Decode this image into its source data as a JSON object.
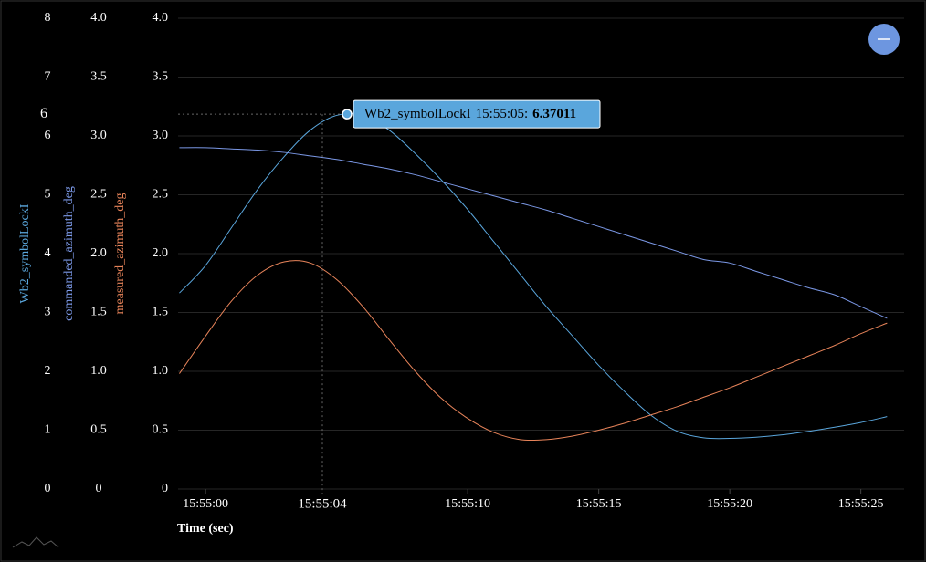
{
  "chart_data": {
    "type": "line",
    "x_label": "Time (sec)",
    "x": [
      -1,
      0,
      1,
      2,
      3,
      4,
      5,
      6,
      7,
      8,
      9,
      10,
      11,
      12,
      13,
      14,
      15,
      16,
      17,
      18,
      19,
      20,
      21,
      22,
      23,
      24,
      25,
      26
    ],
    "xlim": [
      -1.05,
      26.65
    ],
    "xticks": [
      {
        "value": 0,
        "label": "15:55:00"
      },
      {
        "value": 10,
        "label": "15:55:10"
      },
      {
        "value": 15,
        "label": "15:55:15"
      },
      {
        "value": 20,
        "label": "15:55:20"
      },
      {
        "value": 25,
        "label": "15:55:25"
      }
    ],
    "grid": true,
    "axes": [
      {
        "label": "Wb2_symbolLockI",
        "color": "#5aa6dc",
        "lim": [
          0,
          8
        ],
        "ticks": [
          0,
          1,
          2,
          3,
          4,
          5,
          6,
          7,
          8
        ]
      },
      {
        "label": "commanded_azimuth_deg",
        "color": "#7b98e6",
        "lim": [
          0,
          4
        ],
        "ticks": [
          0,
          0.5,
          {
            "value": 1,
            "label": "1.0"
          },
          1.5,
          {
            "value": 2,
            "label": "2.0"
          },
          2.5,
          {
            "value": 3,
            "label": "3.0"
          },
          3.5,
          {
            "value": 4,
            "label": "4.0"
          }
        ]
      },
      {
        "label": "measured_azimuth_deg",
        "color": "#e8845a",
        "lim": [
          0,
          4
        ],
        "ticks": [
          0,
          0.5,
          {
            "value": 1,
            "label": "1.0"
          },
          1.5,
          {
            "value": 2,
            "label": "2.0"
          },
          2.5,
          {
            "value": 3,
            "label": "3.0"
          },
          3.5,
          {
            "value": 4,
            "label": "4.0"
          }
        ]
      }
    ],
    "series": [
      {
        "name": "Wb2_symbolLockI",
        "color": "#5aa6dc",
        "axis": 0,
        "values": [
          3.33,
          3.8,
          4.45,
          5.1,
          5.65,
          6.1,
          6.35,
          6.35,
          6.1,
          5.7,
          5.25,
          4.75,
          4.2,
          3.65,
          3.1,
          2.6,
          2.1,
          1.65,
          1.25,
          0.98,
          0.87,
          0.86,
          0.88,
          0.92,
          0.98,
          1.05,
          1.13,
          1.23
        ]
      },
      {
        "name": "commanded_azimuth_deg",
        "color": "#7b98e6",
        "axis": 1,
        "values": [
          2.9,
          2.9,
          2.89,
          2.88,
          2.86,
          2.83,
          2.8,
          2.76,
          2.72,
          2.67,
          2.61,
          2.55,
          2.49,
          2.43,
          2.37,
          2.3,
          2.23,
          2.16,
          2.09,
          2.02,
          1.95,
          1.92,
          1.85,
          1.78,
          1.71,
          1.65,
          1.55,
          1.45
        ]
      },
      {
        "name": "measured_azimuth_deg",
        "color": "#e8845a",
        "axis": 2,
        "values": [
          0.98,
          1.3,
          1.6,
          1.82,
          1.93,
          1.92,
          1.78,
          1.55,
          1.27,
          1.0,
          0.77,
          0.6,
          0.48,
          0.42,
          0.42,
          0.45,
          0.5,
          0.56,
          0.63,
          0.7,
          0.78,
          0.86,
          0.95,
          1.04,
          1.13,
          1.22,
          1.32,
          1.41
        ]
      }
    ],
    "hover": {
      "y_label": "6",
      "x_label": "15:55:04",
      "series": "Wb2_symbolLockI",
      "time": "15:55:05:",
      "value": 6.37011
    }
  }
}
